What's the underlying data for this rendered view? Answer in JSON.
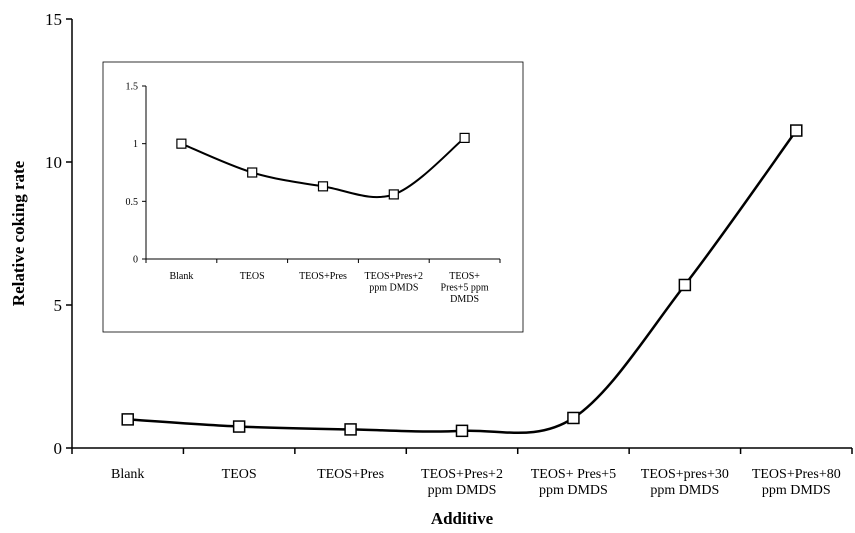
{
  "chart_data": [
    {
      "type": "line",
      "xlabel": "Additive",
      "ylabel": "Relative coking rate",
      "ylim": [
        0,
        15
      ],
      "yticks": [
        0,
        5,
        10,
        15
      ],
      "categories": [
        [
          "Blank"
        ],
        [
          "TEOS"
        ],
        [
          "TEOS+Pres"
        ],
        [
          "TEOS+Pres+2",
          "ppm DMDS"
        ],
        [
          "TEOS+ Pres+5",
          "ppm DMDS"
        ],
        [
          "TEOS+pres+30",
          "ppm DMDS"
        ],
        [
          "TEOS+Pres+80",
          "ppm DMDS"
        ]
      ],
      "values": [
        1.0,
        0.75,
        0.65,
        0.6,
        1.05,
        5.7,
        11.1
      ],
      "marker": "open-square",
      "grid": false,
      "legend": "none",
      "line_color": "#000000"
    },
    {
      "type": "line",
      "inset": true,
      "ylim": [
        0,
        1.5
      ],
      "yticks": [
        "0",
        "0.5",
        "1",
        "1.5"
      ],
      "categories": [
        [
          "Blank"
        ],
        [
          "TEOS"
        ],
        [
          "TEOS+Pres"
        ],
        [
          "TEOS+Pres+2",
          "ppm DMDS"
        ],
        [
          "TEOS+",
          "Pres+5 ppm",
          "DMDS"
        ]
      ],
      "values": [
        1.0,
        0.75,
        0.63,
        0.56,
        1.05
      ],
      "marker": "open-square",
      "grid": false,
      "legend": "none",
      "line_color": "#000000"
    }
  ]
}
